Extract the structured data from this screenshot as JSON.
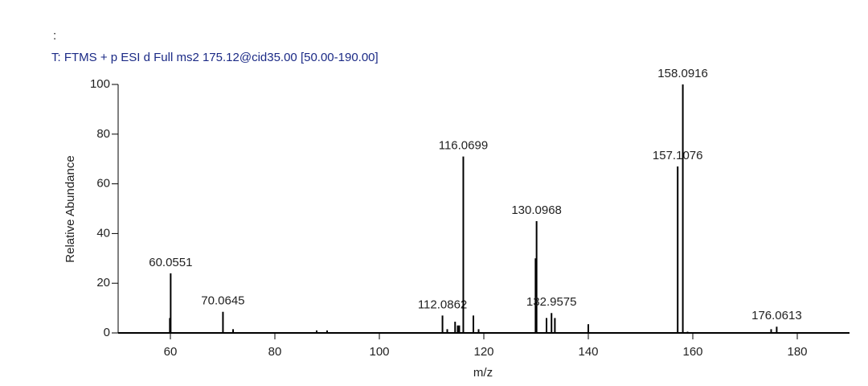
{
  "chart_data": {
    "type": "stem",
    "header": ":",
    "title": "T: FTMS + p ESI d Full ms2 175.12@cid35.00 [50.00-190.00]",
    "x_label": "m/z",
    "y_label": "Relative Abundance",
    "x": [
      59.9,
      60.0551,
      70.0645,
      72,
      88,
      90,
      112.0862,
      113,
      114.5,
      115,
      115.3,
      116.0699,
      118,
      119,
      129.9,
      130.0968,
      132,
      132.9575,
      133.6,
      140,
      157.1076,
      158.0916,
      159,
      175,
      176.0613
    ],
    "values": [
      6,
      24,
      8.5,
      1.5,
      1,
      1,
      7,
      1.5,
      4.5,
      3,
      3,
      71,
      7,
      1.5,
      30,
      45,
      6,
      8,
      6,
      3.5,
      67,
      100,
      0.5,
      1.5,
      2.5
    ],
    "x_labels": [
      null,
      "60.0551",
      "70.0645",
      null,
      null,
      null,
      "112.0862",
      null,
      null,
      null,
      null,
      "116.0699",
      null,
      null,
      null,
      "130.0968",
      null,
      "132.9575",
      null,
      null,
      "157.1076",
      "158.0916",
      null,
      null,
      "176.0613"
    ],
    "color": "#000000",
    "xlim": [
      50,
      190
    ],
    "xticks": [
      60,
      80,
      100,
      120,
      140,
      160,
      180
    ],
    "ylim": [
      0,
      100
    ],
    "yticks": [
      0,
      20,
      40,
      60,
      80,
      100
    ]
  }
}
